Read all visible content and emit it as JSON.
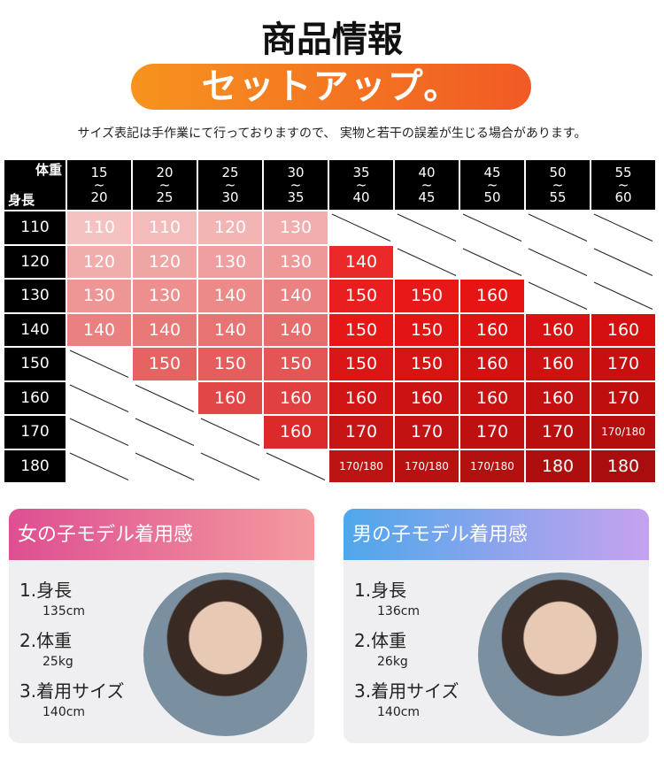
{
  "header": {
    "title": "商品情報",
    "banner": "セットアップ。",
    "note": "サイズ表記は手作業にて行っておりますので、 実物と若干の誤差が生じる場合があります。"
  },
  "table": {
    "corner_top": "体重",
    "corner_bottom": "身長",
    "columns": [
      "15\n~\n20",
      "20\n~\n25",
      "25\n~\n30",
      "30\n~\n35",
      "35\n~\n40",
      "40\n~\n45",
      "45\n~\n50",
      "50\n~\n55",
      "55\n~\n60"
    ],
    "rows": [
      {
        "label": "110",
        "cells": [
          "110",
          "110",
          "120",
          "130",
          null,
          null,
          null,
          null,
          null
        ]
      },
      {
        "label": "120",
        "cells": [
          "120",
          "120",
          "130",
          "130",
          "140",
          null,
          null,
          null,
          null
        ]
      },
      {
        "label": "130",
        "cells": [
          "130",
          "130",
          "140",
          "140",
          "150",
          "150",
          "160",
          null,
          null
        ]
      },
      {
        "label": "140",
        "cells": [
          "140",
          "140",
          "140",
          "140",
          "150",
          "150",
          "160",
          "160",
          "160"
        ]
      },
      {
        "label": "150",
        "cells": [
          null,
          "150",
          "150",
          "150",
          "150",
          "150",
          "160",
          "160",
          "170"
        ]
      },
      {
        "label": "160",
        "cells": [
          null,
          null,
          "160",
          "160",
          "160",
          "160",
          "160",
          "160",
          "170"
        ]
      },
      {
        "label": "170",
        "cells": [
          null,
          null,
          null,
          "160",
          "170",
          "170",
          "170",
          "170",
          "170/180"
        ]
      },
      {
        "label": "180",
        "cells": [
          null,
          null,
          null,
          null,
          "170/180",
          "170/180",
          "170/180",
          "180",
          "180"
        ]
      }
    ]
  },
  "models": [
    {
      "title": "女の子モデル着用感",
      "items": [
        {
          "label": "1.身長",
          "value": "135cm"
        },
        {
          "label": "2.体重",
          "value": "25kg"
        },
        {
          "label": "3.着用サイズ",
          "value": "140cm"
        }
      ]
    },
    {
      "title": "男の子モデル着用感",
      "items": [
        {
          "label": "1.身長",
          "value": "136cm"
        },
        {
          "label": "2.体重",
          "value": "26kg"
        },
        {
          "label": "3.着用サイズ",
          "value": "140cm"
        }
      ]
    }
  ]
}
